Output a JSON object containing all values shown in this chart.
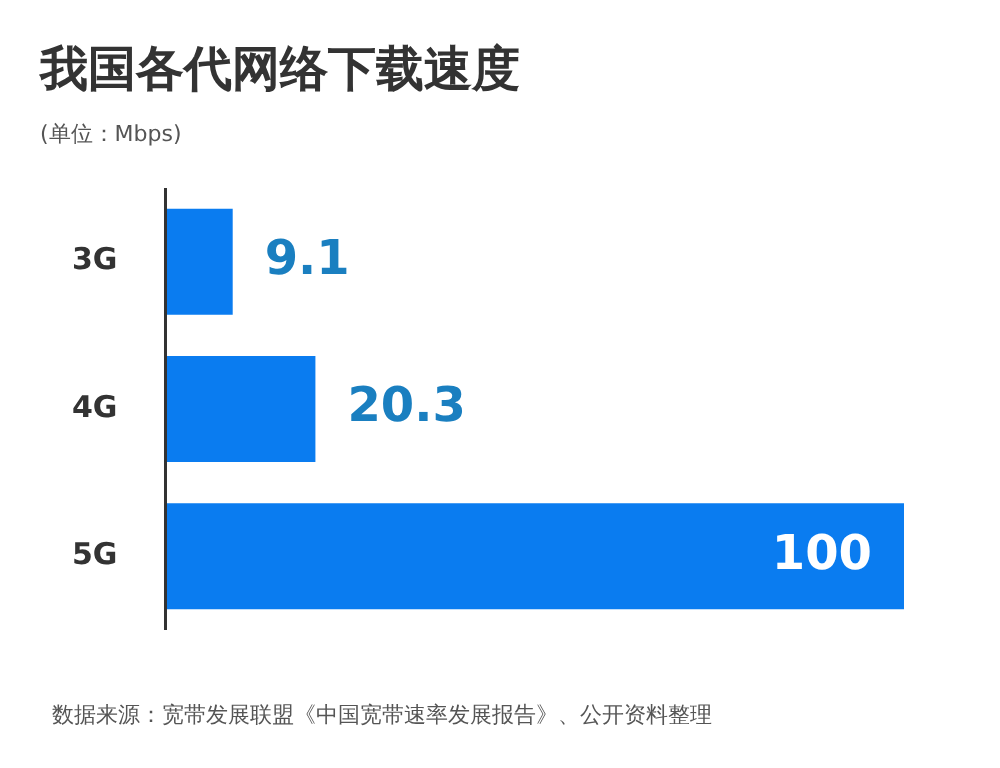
{
  "chart_data": {
    "type": "bar",
    "orientation": "horizontal",
    "title": "我国各代网络下载速度",
    "subtitle": "(单位：Mbps)",
    "categories": [
      "3G",
      "4G",
      "5G"
    ],
    "values": [
      9.1,
      20.3,
      100
    ],
    "color": "#0a7cf0",
    "data_labels": true,
    "legend": false,
    "annotations": [
      "数据来源：宽带发展联盟《中国宽带速率发展报告》、公开资料整理"
    ]
  }
}
